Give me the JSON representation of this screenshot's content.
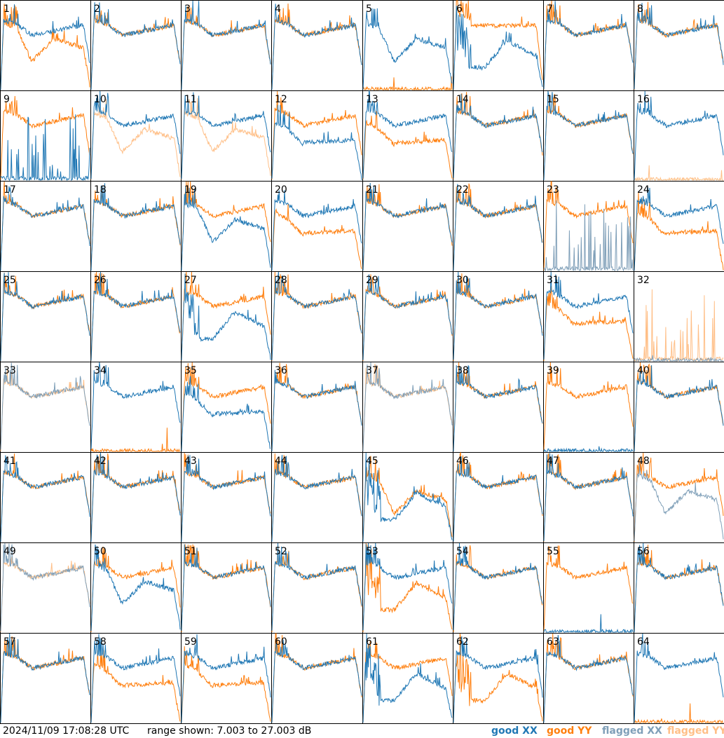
{
  "footer": {
    "timestamp": "2024/11/09 17:08:28 UTC",
    "range_text": "range shown: 7.003 to 27.003 dB",
    "legend": [
      {
        "label": "good XX",
        "color": "#1f77b4"
      },
      {
        "label": "good YY",
        "color": "#ff7f0e"
      },
      {
        "label": "flagged XX",
        "color": "#7f9fb8"
      },
      {
        "label": "flagged YY",
        "color": "#ffbf87"
      }
    ]
  },
  "chart_data": {
    "type": "line",
    "grid": [
      8,
      8
    ],
    "ylim": [
      7.003,
      27.003
    ],
    "tiles": [
      {
        "id": "1",
        "xx": "good",
        "yy": "good",
        "xx_shape": "mid",
        "yy_shape": "dip"
      },
      {
        "id": "2",
        "xx": "good",
        "yy": "good",
        "xx_shape": "mid",
        "yy_shape": "mid"
      },
      {
        "id": "3",
        "xx": "good",
        "yy": "good",
        "xx_shape": "mid",
        "yy_shape": "mid"
      },
      {
        "id": "4",
        "xx": "good",
        "yy": "good",
        "xx_shape": "mid",
        "yy_shape": "mid"
      },
      {
        "id": "5",
        "xx": "good",
        "yy": "good",
        "xx_shape": "dip",
        "yy_shape": "dead"
      },
      {
        "id": "6",
        "xx": "good",
        "yy": "good",
        "xx_shape": "deep",
        "yy_shape": "high"
      },
      {
        "id": "7",
        "xx": "good",
        "yy": "good",
        "xx_shape": "mid",
        "yy_shape": "mid"
      },
      {
        "id": "8",
        "xx": "good",
        "yy": "good",
        "xx_shape": "mid",
        "yy_shape": "mid"
      },
      {
        "id": "9",
        "xx": "good",
        "yy": "good",
        "xx_shape": "spiky",
        "yy_shape": "mid"
      },
      {
        "id": "10",
        "xx": "good",
        "yy": "flagged",
        "xx_shape": "mid",
        "yy_shape": "dip"
      },
      {
        "id": "11",
        "xx": "good",
        "yy": "flagged",
        "xx_shape": "mid",
        "yy_shape": "dip"
      },
      {
        "id": "12",
        "xx": "good",
        "yy": "good",
        "xx_shape": "low",
        "yy_shape": "mid"
      },
      {
        "id": "13",
        "xx": "good",
        "yy": "good",
        "xx_shape": "mid",
        "yy_shape": "low"
      },
      {
        "id": "14",
        "xx": "good",
        "yy": "good",
        "xx_shape": "mid",
        "yy_shape": "mid"
      },
      {
        "id": "15",
        "xx": "good",
        "yy": "good",
        "xx_shape": "mid",
        "yy_shape": "mid"
      },
      {
        "id": "16",
        "xx": "good",
        "yy": "flagged",
        "xx_shape": "mid",
        "yy_shape": "dead"
      },
      {
        "id": "17",
        "xx": "good",
        "yy": "good",
        "xx_shape": "mid",
        "yy_shape": "mid"
      },
      {
        "id": "18",
        "xx": "good",
        "yy": "good",
        "xx_shape": "mid",
        "yy_shape": "mid"
      },
      {
        "id": "19",
        "xx": "good",
        "yy": "good",
        "xx_shape": "dip",
        "yy_shape": "mid"
      },
      {
        "id": "20",
        "xx": "good",
        "yy": "good",
        "xx_shape": "mid",
        "yy_shape": "low"
      },
      {
        "id": "21",
        "xx": "good",
        "yy": "good",
        "xx_shape": "mid",
        "yy_shape": "mid"
      },
      {
        "id": "22",
        "xx": "good",
        "yy": "good",
        "xx_shape": "mid",
        "yy_shape": "mid"
      },
      {
        "id": "23",
        "xx": "flagged",
        "yy": "good",
        "xx_shape": "spiky",
        "yy_shape": "mid"
      },
      {
        "id": "24",
        "xx": "good",
        "yy": "good",
        "xx_shape": "mid",
        "yy_shape": "low"
      },
      {
        "id": "25",
        "xx": "good",
        "yy": "good",
        "xx_shape": "mid",
        "yy_shape": "mid"
      },
      {
        "id": "26",
        "xx": "good",
        "yy": "good",
        "xx_shape": "mid",
        "yy_shape": "mid"
      },
      {
        "id": "27",
        "xx": "good",
        "yy": "good",
        "xx_shape": "deep",
        "yy_shape": "mid"
      },
      {
        "id": "28",
        "xx": "good",
        "yy": "good",
        "xx_shape": "mid",
        "yy_shape": "mid"
      },
      {
        "id": "29",
        "xx": "good",
        "yy": "good",
        "xx_shape": "mid",
        "yy_shape": "mid"
      },
      {
        "id": "30",
        "xx": "good",
        "yy": "good",
        "xx_shape": "mid",
        "yy_shape": "mid"
      },
      {
        "id": "31",
        "xx": "good",
        "yy": "good",
        "xx_shape": "mid",
        "yy_shape": "low"
      },
      {
        "id": "32",
        "xx": "flagged",
        "yy": "flagged",
        "xx_shape": "dead",
        "yy_shape": "spiky"
      },
      {
        "id": "33",
        "xx": "flagged",
        "yy": "flagged",
        "xx_shape": "mid",
        "yy_shape": "mid"
      },
      {
        "id": "34",
        "xx": "good",
        "yy": "good",
        "xx_shape": "mid",
        "yy_shape": "dead"
      },
      {
        "id": "35",
        "xx": "good",
        "yy": "good",
        "xx_shape": "low",
        "yy_shape": "mid"
      },
      {
        "id": "36",
        "xx": "good",
        "yy": "good",
        "xx_shape": "mid",
        "yy_shape": "mid"
      },
      {
        "id": "37",
        "xx": "flagged",
        "yy": "flagged",
        "xx_shape": "mid",
        "yy_shape": "mid"
      },
      {
        "id": "38",
        "xx": "good",
        "yy": "good",
        "xx_shape": "mid",
        "yy_shape": "mid"
      },
      {
        "id": "39",
        "xx": "good",
        "yy": "good",
        "xx_shape": "dead",
        "yy_shape": "mid"
      },
      {
        "id": "40",
        "xx": "good",
        "yy": "good",
        "xx_shape": "mid",
        "yy_shape": "mid"
      },
      {
        "id": "41",
        "xx": "good",
        "yy": "good",
        "xx_shape": "mid",
        "yy_shape": "mid"
      },
      {
        "id": "42",
        "xx": "good",
        "yy": "good",
        "xx_shape": "mid",
        "yy_shape": "mid"
      },
      {
        "id": "43",
        "xx": "good",
        "yy": "good",
        "xx_shape": "mid",
        "yy_shape": "mid"
      },
      {
        "id": "44",
        "xx": "good",
        "yy": "good",
        "xx_shape": "mid",
        "yy_shape": "mid"
      },
      {
        "id": "45",
        "xx": "good",
        "yy": "good",
        "xx_shape": "deep",
        "yy_shape": "dip"
      },
      {
        "id": "46",
        "xx": "good",
        "yy": "good",
        "xx_shape": "mid",
        "yy_shape": "mid"
      },
      {
        "id": "47",
        "xx": "good",
        "yy": "good",
        "xx_shape": "mid",
        "yy_shape": "mid"
      },
      {
        "id": "48",
        "xx": "flagged",
        "yy": "good",
        "xx_shape": "dip",
        "yy_shape": "mid"
      },
      {
        "id": "49",
        "xx": "flagged",
        "yy": "flagged",
        "xx_shape": "mid",
        "yy_shape": "mid"
      },
      {
        "id": "50",
        "xx": "good",
        "yy": "good",
        "xx_shape": "dip",
        "yy_shape": "mid"
      },
      {
        "id": "51",
        "xx": "good",
        "yy": "good",
        "xx_shape": "mid",
        "yy_shape": "mid"
      },
      {
        "id": "52",
        "xx": "good",
        "yy": "good",
        "xx_shape": "mid",
        "yy_shape": "mid"
      },
      {
        "id": "53",
        "xx": "good",
        "yy": "good",
        "xx_shape": "mid",
        "yy_shape": "deep"
      },
      {
        "id": "54",
        "xx": "good",
        "yy": "good",
        "xx_shape": "mid",
        "yy_shape": "mid"
      },
      {
        "id": "55",
        "xx": "good",
        "yy": "good",
        "xx_shape": "dead",
        "yy_shape": "mid"
      },
      {
        "id": "56",
        "xx": "good",
        "yy": "good",
        "xx_shape": "mid",
        "yy_shape": "mid"
      },
      {
        "id": "57",
        "xx": "good",
        "yy": "good",
        "xx_shape": "mid",
        "yy_shape": "mid"
      },
      {
        "id": "58",
        "xx": "good",
        "yy": "good",
        "xx_shape": "mid",
        "yy_shape": "low"
      },
      {
        "id": "59",
        "xx": "good",
        "yy": "good",
        "xx_shape": "mid",
        "yy_shape": "low"
      },
      {
        "id": "60",
        "xx": "good",
        "yy": "good",
        "xx_shape": "mid",
        "yy_shape": "mid"
      },
      {
        "id": "61",
        "xx": "good",
        "yy": "good",
        "xx_shape": "deep",
        "yy_shape": "mid"
      },
      {
        "id": "62",
        "xx": "good",
        "yy": "good",
        "xx_shape": "mid",
        "yy_shape": "deep"
      },
      {
        "id": "63",
        "xx": "good",
        "yy": "good",
        "xx_shape": "mid",
        "yy_shape": "mid"
      },
      {
        "id": "64",
        "xx": "good",
        "yy": "good",
        "xx_shape": "mid",
        "yy_shape": "dead"
      }
    ]
  }
}
